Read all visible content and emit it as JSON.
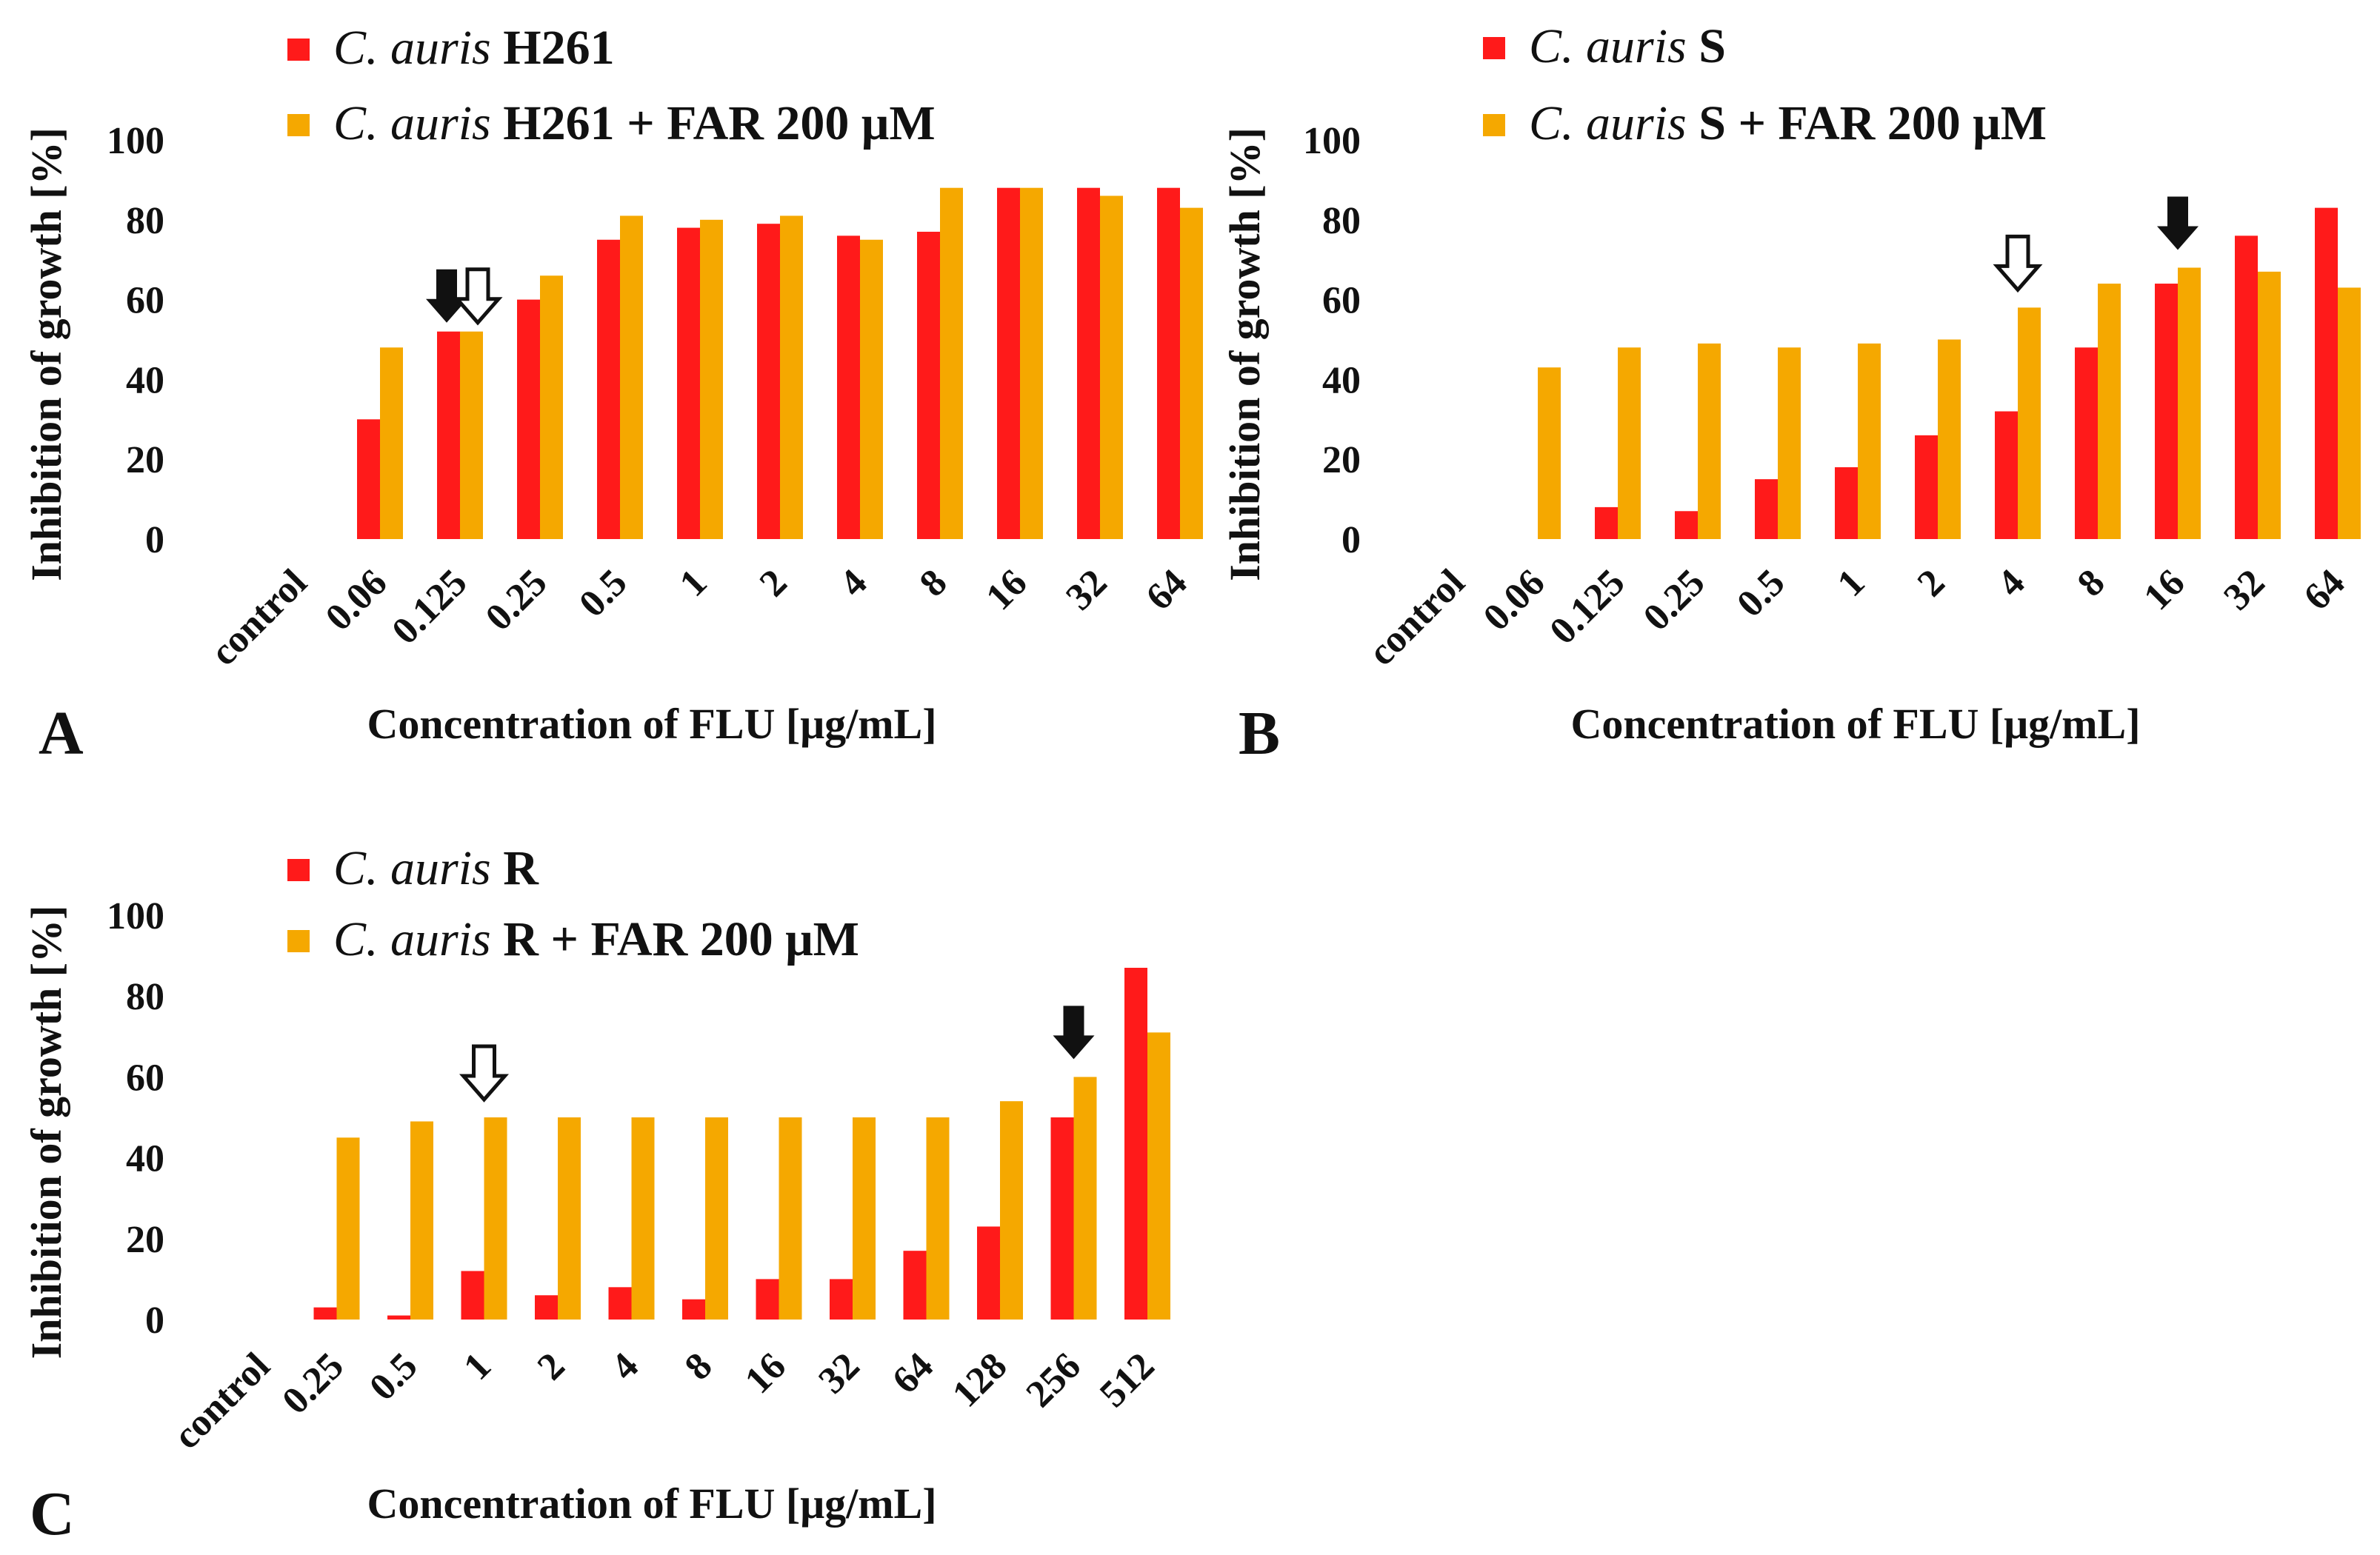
{
  "colors": {
    "strain": "#ff1a1a",
    "with_far": "#f5a800",
    "arrow_fill": "#111111",
    "arrow_open": "#ffffff"
  },
  "chart_data": [
    {
      "type": "bar",
      "panel": "A",
      "xlabel": "Concentration of FLU [μg/mL]",
      "ylabel": "Inhibition of growth [%]",
      "ylim": [
        0,
        100
      ],
      "yticks": [
        "0",
        "20",
        "40",
        "60",
        "80",
        "100"
      ],
      "categories": [
        "control",
        "0.06",
        "0.125",
        "0.25",
        "0.5",
        "1",
        "2",
        "4",
        "8",
        "16",
        "32",
        "64"
      ],
      "series": [
        {
          "name_species": "C. auris",
          "name_rest": "H261",
          "values": [
            0,
            30,
            52,
            60,
            75,
            78,
            79,
            76,
            77,
            88,
            88,
            88
          ]
        },
        {
          "name_species": "C. auris",
          "name_rest": "H261 + FAR 200 μM",
          "values": [
            0,
            48,
            52,
            66,
            81,
            80,
            81,
            75,
            88,
            88,
            86,
            83
          ]
        }
      ],
      "annotations": {
        "filled_arrow": "0.125",
        "open_arrow": "0.125"
      }
    },
    {
      "type": "bar",
      "panel": "B",
      "xlabel": "Concentration of FLU [μg/mL]",
      "ylabel": "Inhibition of growth [%]",
      "ylim": [
        0,
        100
      ],
      "yticks": [
        "0",
        "20",
        "40",
        "60",
        "80",
        "100"
      ],
      "categories": [
        "control",
        "0.06",
        "0.125",
        "0.25",
        "0.5",
        "1",
        "2",
        "4",
        "8",
        "16",
        "32",
        "64"
      ],
      "series": [
        {
          "name_species": "C. auris",
          "name_rest": "S",
          "values": [
            0,
            0,
            8,
            7,
            15,
            18,
            26,
            32,
            48,
            64,
            76,
            83
          ]
        },
        {
          "name_species": "C. auris",
          "name_rest": "S + FAR 200 μM",
          "values": [
            0,
            43,
            48,
            49,
            48,
            49,
            50,
            58,
            64,
            68,
            67,
            63
          ]
        }
      ],
      "annotations": {
        "filled_arrow": "16",
        "open_arrow": "4"
      }
    },
    {
      "type": "bar",
      "panel": "C",
      "xlabel": "Concentration of FLU [μg/mL]",
      "ylabel": "Inhibition of growth [%]",
      "ylim": [
        0,
        100
      ],
      "yticks": [
        "0",
        "20",
        "40",
        "60",
        "80",
        "100"
      ],
      "categories": [
        "control",
        "0.25",
        "0.5",
        "1",
        "2",
        "4",
        "8",
        "16",
        "32",
        "64",
        "128",
        "256",
        "512"
      ],
      "series": [
        {
          "name_species": "C. auris",
          "name_rest": "R",
          "values": [
            0,
            3,
            1,
            12,
            6,
            8,
            5,
            10,
            10,
            17,
            23,
            50,
            87
          ]
        },
        {
          "name_species": "C. auris",
          "name_rest": "R + FAR 200 μM",
          "values": [
            0,
            45,
            49,
            50,
            50,
            50,
            50,
            50,
            50,
            50,
            54,
            60,
            71
          ]
        }
      ],
      "annotations": {
        "filled_arrow": "256",
        "open_arrow": "1"
      }
    }
  ]
}
